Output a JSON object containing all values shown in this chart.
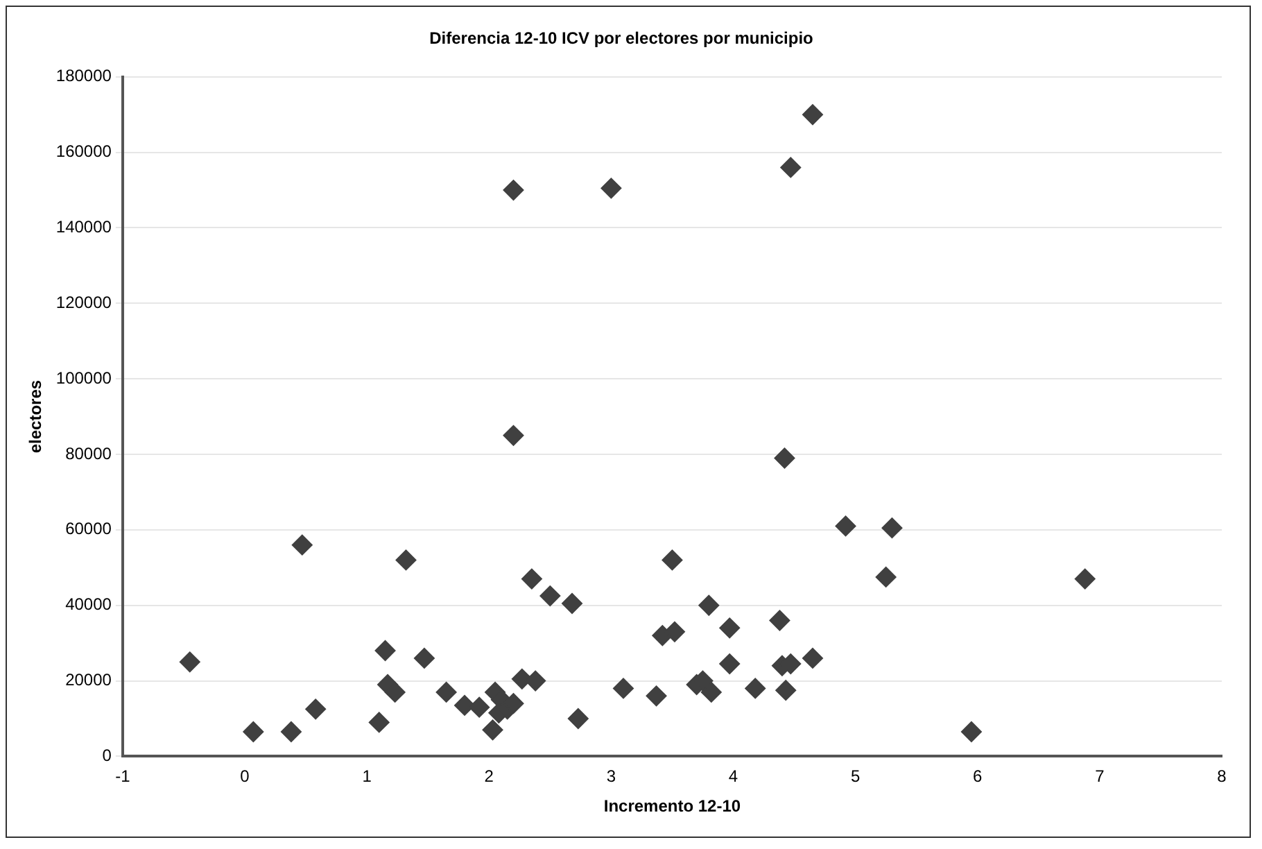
{
  "chart_data": {
    "type": "scatter",
    "title": "Diferencia 12-10 ICV por electores por municipio",
    "xlabel": "Incremento 12-10",
    "ylabel": "electores",
    "x": [
      -0.45,
      0.07,
      0.38,
      0.47,
      0.58,
      1.1,
      1.15,
      1.17,
      1.23,
      1.32,
      1.47,
      1.65,
      1.8,
      1.92,
      2.03,
      2.05,
      2.1,
      2.08,
      2.15,
      2.2,
      2.2,
      2.2,
      2.27,
      2.35,
      2.38,
      2.5,
      2.68,
      2.73,
      3.0,
      3.1,
      3.37,
      3.42,
      3.5,
      3.52,
      3.7,
      3.75,
      3.8,
      3.82,
      3.97,
      3.97,
      4.18,
      4.38,
      4.42,
      4.4,
      4.47,
      4.43,
      4.47,
      4.65,
      4.65,
      4.92,
      5.25,
      5.3,
      5.95,
      6.88
    ],
    "series": [
      {
        "color": "#404040",
        "values": [
          25000,
          6500,
          6500,
          56000,
          12500,
          9000,
          28000,
          19000,
          17000,
          52000,
          26000,
          17000,
          13500,
          13000,
          7000,
          17000,
          15000,
          11500,
          12500,
          14000,
          150000,
          85000,
          20500,
          47000,
          20000,
          42500,
          40500,
          10000,
          150500,
          18000,
          16000,
          32000,
          52000,
          33000,
          19000,
          20000,
          40000,
          17000,
          34000,
          24500,
          18000,
          36000,
          79000,
          24000,
          24500,
          17500,
          156000,
          170000,
          26000,
          61000,
          47500,
          60500,
          6500,
          47000
        ]
      }
    ],
    "xlim": [
      -1,
      8
    ],
    "xticks": [
      -1,
      0,
      1,
      2,
      3,
      4,
      5,
      6,
      7,
      8
    ],
    "ylim": [
      0,
      180000
    ],
    "yticks": [
      0,
      20000,
      40000,
      60000,
      80000,
      100000,
      120000,
      140000,
      160000,
      180000
    ],
    "grid": "y",
    "legend": false,
    "marker": "diamond"
  }
}
